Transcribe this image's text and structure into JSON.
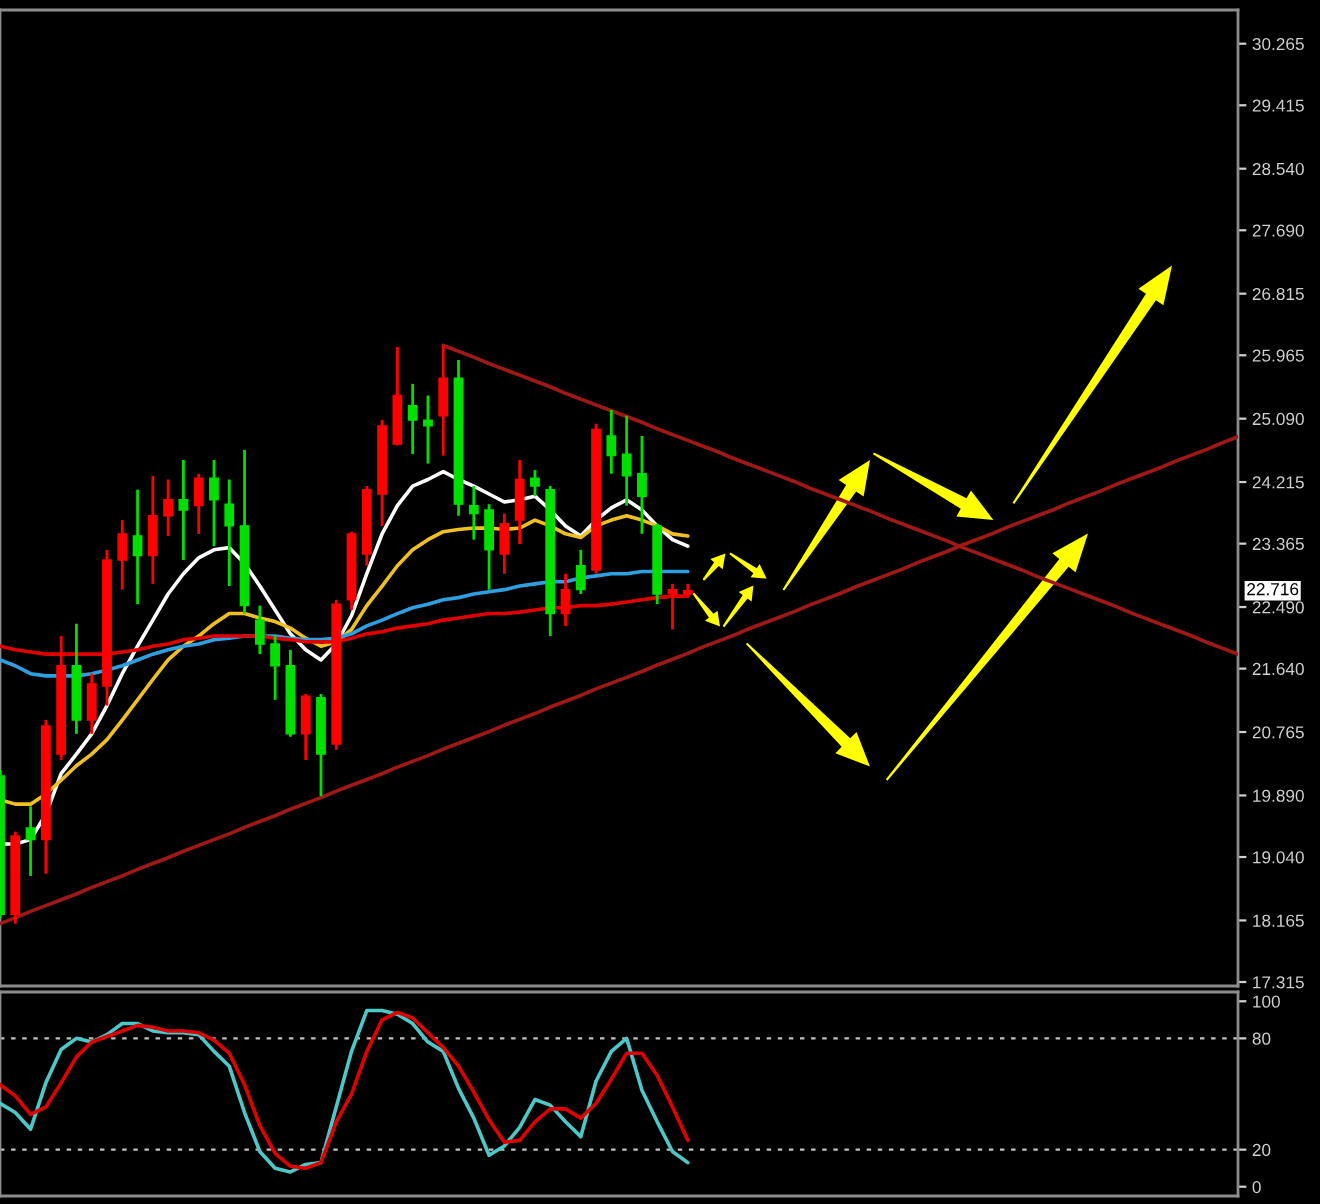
{
  "chart_data": [
    {
      "type": "candlestick",
      "categories": [
        null,
        null,
        null,
        null,
        null,
        null,
        null,
        null,
        null,
        null,
        null,
        null,
        null,
        null,
        null,
        null,
        null,
        null,
        null,
        null,
        null,
        null,
        null,
        null,
        null,
        null,
        null,
        null,
        null,
        null,
        null,
        null,
        null,
        null,
        null,
        null,
        null,
        null,
        null,
        null,
        null,
        null,
        null,
        null,
        null,
        null,
        null,
        null,
        null,
        null,
        null,
        null,
        null,
        null,
        null,
        null,
        null,
        null,
        null,
        null,
        null,
        null,
        null,
        null,
        null,
        null,
        null,
        null,
        null,
        null,
        null,
        null,
        null,
        null,
        null,
        null,
        null,
        null,
        null,
        null,
        null,
        null
      ],
      "ohlc": [
        [
          20.16,
          20.24,
          18.19,
          18.25
        ],
        [
          18.25,
          19.39,
          18.12,
          19.33
        ],
        [
          19.44,
          19.74,
          18.78,
          19.28
        ],
        [
          19.28,
          20.93,
          18.81,
          20.85
        ],
        [
          20.46,
          22.09,
          20.38,
          21.68
        ],
        [
          21.68,
          22.26,
          20.74,
          20.93
        ],
        [
          20.93,
          21.57,
          20.74,
          21.43
        ],
        [
          21.4,
          23.28,
          21.13,
          23.14
        ],
        [
          23.14,
          23.69,
          22.73,
          23.5
        ],
        [
          23.47,
          24.11,
          22.53,
          23.2
        ],
        [
          23.2,
          24.3,
          22.81,
          23.75
        ],
        [
          23.75,
          24.25,
          23.47,
          23.97
        ],
        [
          23.97,
          24.52,
          23.14,
          23.83
        ],
        [
          23.89,
          24.33,
          23.5,
          24.27
        ],
        [
          24.27,
          24.52,
          23.33,
          23.97
        ],
        [
          23.91,
          24.25,
          22.78,
          23.61
        ],
        [
          23.61,
          24.66,
          22.4,
          22.51
        ],
        [
          22.31,
          22.51,
          21.84,
          21.98
        ],
        [
          21.98,
          22.09,
          21.21,
          21.68
        ],
        [
          21.68,
          21.9,
          20.7,
          20.74
        ],
        [
          20.74,
          21.29,
          20.38,
          21.26
        ],
        [
          21.24,
          21.29,
          19.88,
          20.46
        ],
        [
          20.6,
          22.59,
          20.52,
          22.53
        ],
        [
          22.59,
          23.53,
          22.45,
          23.5
        ],
        [
          23.22,
          24.16,
          23.06,
          24.11
        ],
        [
          24.05,
          25.07,
          23.61,
          24.99
        ],
        [
          24.74,
          26.08,
          24.72,
          25.41
        ],
        [
          25.27,
          25.57,
          24.6,
          25.07
        ],
        [
          25.07,
          25.41,
          24.47,
          24.99
        ],
        [
          25.13,
          26.1,
          24.58,
          25.65
        ],
        [
          25.65,
          25.9,
          23.75,
          23.91
        ],
        [
          23.89,
          24.16,
          23.42,
          23.78
        ],
        [
          23.83,
          23.91,
          22.73,
          23.28
        ],
        [
          23.22,
          23.78,
          22.95,
          23.64
        ],
        [
          23.69,
          24.52,
          23.36,
          24.25
        ],
        [
          24.27,
          24.38,
          24.02,
          24.16
        ],
        [
          24.11,
          24.16,
          22.09,
          22.4
        ],
        [
          22.4,
          22.95,
          22.23,
          22.73
        ],
        [
          23.06,
          23.28,
          22.67,
          22.73
        ],
        [
          23.0,
          25.02,
          22.95,
          24.94
        ],
        [
          24.85,
          25.21,
          24.33,
          24.58
        ],
        [
          24.6,
          25.13,
          23.89,
          24.3
        ],
        [
          24.33,
          24.85,
          23.5,
          24.02
        ],
        [
          23.61,
          23.64,
          22.53,
          22.67
        ],
        [
          22.67,
          22.81,
          22.18,
          22.73
        ],
        [
          22.67,
          22.81,
          22.64,
          22.716
        ],
        null,
        null,
        null,
        null,
        null,
        null,
        null,
        null,
        null,
        null,
        null,
        null,
        null,
        null,
        null,
        null,
        null,
        null,
        null,
        null,
        null,
        null,
        null,
        null,
        null,
        null,
        null,
        null,
        null,
        null,
        null,
        null,
        null,
        null,
        null,
        null
      ],
      "colors": [
        "#00e000",
        "#ff0000",
        "#00e000",
        "#ff0000",
        "#ff0000",
        "#00e000",
        "#ff0000",
        "#ff0000",
        "#ff0000",
        "#00e000",
        "#ff0000",
        "#ff0000",
        "#00e000",
        "#ff0000",
        "#00e000",
        "#00e000",
        "#00e000",
        "#00e000",
        "#00e000",
        "#00e000",
        "#ff0000",
        "#00e000",
        "#ff0000",
        "#ff0000",
        "#ff0000",
        "#ff0000",
        "#ff0000",
        "#00e000",
        "#00e000",
        "#ff0000",
        "#00e000",
        "#00e000",
        "#00e000",
        "#ff0000",
        "#ff0000",
        "#00e000",
        "#00e000",
        "#ff0000",
        "#00e000",
        "#ff0000",
        "#00e000",
        "#00e000",
        "#00e000",
        "#00e000",
        "#ff0000",
        "#ff0000",
        null,
        null,
        null,
        null,
        null,
        null,
        null,
        null,
        null,
        null,
        null,
        null,
        null,
        null,
        null,
        null,
        null,
        null,
        null,
        null,
        null,
        null,
        null,
        null,
        null,
        null,
        null,
        null,
        null,
        null,
        null,
        null,
        null,
        null,
        null,
        null
      ],
      "series": [
        {
          "type": "line",
          "color": "#ffffff",
          "values": [
            19.22,
            19.22,
            19.28,
            19.63,
            20.19,
            20.46,
            20.74,
            21.13,
            21.57,
            21.95,
            22.31,
            22.67,
            22.95,
            23.17,
            23.28,
            23.31,
            23.09,
            22.78,
            22.45,
            22.12,
            21.9,
            21.76,
            21.98,
            22.37,
            22.95,
            23.5,
            23.89,
            24.16,
            24.25,
            24.36,
            24.25,
            24.16,
            24.05,
            23.94,
            23.97,
            24.02,
            23.83,
            23.61,
            23.47,
            23.69,
            23.86,
            23.97,
            23.83,
            23.61,
            23.42,
            23.33,
            null,
            null,
            null,
            null,
            null,
            null,
            null,
            null,
            null,
            null,
            null,
            null,
            null,
            null,
            null,
            null,
            null,
            null,
            null,
            null,
            null,
            null,
            null,
            null,
            null,
            null,
            null,
            null,
            null,
            null,
            null,
            null,
            null,
            null,
            null,
            null
          ]
        },
        {
          "type": "line",
          "color": "#f0c020",
          "values": [
            19.83,
            19.77,
            19.77,
            19.91,
            20.1,
            20.3,
            20.46,
            20.66,
            20.93,
            21.21,
            21.49,
            21.76,
            21.95,
            22.09,
            22.26,
            22.4,
            22.4,
            22.34,
            22.29,
            22.2,
            22.06,
            21.95,
            22.01,
            22.18,
            22.51,
            22.78,
            23.06,
            23.28,
            23.42,
            23.53,
            23.56,
            23.58,
            23.58,
            23.56,
            23.58,
            23.69,
            23.61,
            23.5,
            23.45,
            23.61,
            23.69,
            23.75,
            23.69,
            23.61,
            23.5,
            23.47,
            null,
            null,
            null,
            null,
            null,
            null,
            null,
            null,
            null,
            null,
            null,
            null,
            null,
            null,
            null,
            null,
            null,
            null,
            null,
            null,
            null,
            null,
            null,
            null,
            null,
            null,
            null,
            null,
            null,
            null,
            null,
            null,
            null,
            null,
            null,
            null
          ]
        },
        {
          "type": "line",
          "color": "#2e9fe0",
          "values": [
            21.76,
            21.68,
            21.57,
            21.54,
            21.54,
            21.54,
            21.57,
            21.62,
            21.68,
            21.76,
            21.84,
            21.9,
            21.95,
            21.98,
            22.04,
            22.06,
            22.09,
            22.09,
            22.09,
            22.06,
            22.04,
            22.04,
            22.06,
            22.12,
            22.23,
            22.31,
            22.4,
            22.48,
            22.53,
            22.59,
            22.62,
            22.67,
            22.7,
            22.73,
            22.78,
            22.81,
            22.84,
            22.84,
            22.89,
            22.92,
            22.95,
            22.95,
            22.98,
            22.98,
            22.98,
            22.98,
            null,
            null,
            null,
            null,
            null,
            null,
            null,
            null,
            null,
            null,
            null,
            null,
            null,
            null,
            null,
            null,
            null,
            null,
            null,
            null,
            null,
            null,
            null,
            null,
            null,
            null,
            null,
            null,
            null,
            null,
            null,
            null,
            null,
            null,
            null,
            null
          ]
        },
        {
          "type": "line",
          "color": "#e00000",
          "values": [
            21.95,
            21.9,
            21.87,
            21.84,
            21.84,
            21.84,
            21.84,
            21.84,
            21.87,
            21.9,
            21.95,
            21.98,
            22.04,
            22.06,
            22.09,
            22.09,
            22.09,
            22.09,
            22.06,
            22.04,
            22.01,
            22.01,
            22.01,
            22.06,
            22.12,
            22.15,
            22.2,
            22.23,
            22.26,
            22.31,
            22.34,
            22.37,
            22.4,
            22.4,
            22.42,
            22.45,
            22.48,
            22.48,
            22.51,
            22.51,
            22.53,
            22.56,
            22.59,
            22.62,
            22.64,
            22.64,
            null,
            null,
            null,
            null,
            null,
            null,
            null,
            null,
            null,
            null,
            null,
            null,
            null,
            null,
            null,
            null,
            null,
            null,
            null,
            null,
            null,
            null,
            null,
            null,
            null,
            null,
            null,
            null,
            null,
            null,
            null,
            null,
            null,
            null,
            null,
            null
          ]
        },
        {
          "type": "line",
          "color": "#a01818",
          "values": [
            18.12,
            18.2,
            18.29,
            18.37,
            18.45,
            18.53,
            18.62,
            18.7,
            18.78,
            18.87,
            18.95,
            19.03,
            19.12,
            19.2,
            19.28,
            19.36,
            19.45,
            19.53,
            19.61,
            19.7,
            19.78,
            19.86,
            19.95,
            20.03,
            20.11,
            20.19,
            20.28,
            20.36,
            20.44,
            20.53,
            20.61,
            20.69,
            20.77,
            20.86,
            20.94,
            21.02,
            21.11,
            21.19,
            21.27,
            21.36,
            21.44,
            21.52,
            21.6,
            21.69,
            21.77,
            21.85,
            21.94,
            22.02,
            22.1,
            22.19,
            22.27,
            22.35,
            22.43,
            22.52,
            22.6,
            22.68,
            22.77,
            22.85,
            22.93,
            23.01,
            23.1,
            23.18,
            23.26,
            23.35,
            23.43,
            23.51,
            23.6,
            23.68,
            23.76,
            23.84,
            23.93,
            24.01,
            24.09,
            24.18,
            24.26,
            24.34,
            24.42,
            24.51,
            24.59,
            24.67,
            24.76,
            24.84
          ]
        },
        {
          "type": "line",
          "color": "#a01818",
          "values": [
            null,
            null,
            null,
            null,
            null,
            null,
            null,
            null,
            null,
            null,
            null,
            null,
            null,
            null,
            null,
            null,
            null,
            null,
            null,
            null,
            null,
            null,
            null,
            null,
            null,
            null,
            null,
            null,
            null,
            26.1,
            26.02,
            25.94,
            25.85,
            25.77,
            25.69,
            25.61,
            25.53,
            25.44,
            25.36,
            25.28,
            25.2,
            25.12,
            25.04,
            24.95,
            24.87,
            24.79,
            24.71,
            24.63,
            24.54,
            24.46,
            24.38,
            24.3,
            24.22,
            24.13,
            24.05,
            23.97,
            23.89,
            23.81,
            23.72,
            23.64,
            23.56,
            23.48,
            23.4,
            23.31,
            23.23,
            23.15,
            23.07,
            22.99,
            22.9,
            22.82,
            22.74,
            22.66,
            22.58,
            22.5,
            22.41,
            22.33,
            22.25,
            22.17,
            22.09,
            22.0,
            21.92,
            21.84
          ]
        }
      ],
      "ylim": [
        17.26,
        30.73
      ],
      "yticks": [
        30.265,
        29.415,
        {
          "value": 28.54,
          "label": "28.540"
        },
        {
          "value": 27.69,
          "label": "27.690"
        },
        26.815,
        25.965,
        {
          "value": 25.09,
          "label": "25.090"
        },
        24.215,
        23.365,
        {
          "value": 22.49,
          "label": "22.490"
        },
        {
          "value": 21.64,
          "label": "21.640"
        },
        20.765,
        {
          "value": 19.89,
          "label": "19.890"
        },
        {
          "value": 19.04,
          "label": "19.040"
        },
        18.165,
        17.315
      ],
      "annotations": [
        "22.716"
      ]
    },
    {
      "type": "line",
      "categories": [
        null,
        null,
        null,
        null,
        null,
        null,
        null,
        null,
        null,
        null,
        null,
        null,
        null,
        null,
        null,
        null,
        null,
        null,
        null,
        null,
        null,
        null,
        null,
        null,
        null,
        null,
        null,
        null,
        null,
        null,
        null,
        null,
        null,
        null,
        null,
        null,
        null,
        null,
        null,
        null,
        null,
        null,
        null,
        null,
        null,
        null,
        null,
        null,
        null,
        null,
        null,
        null,
        null,
        null,
        null,
        null,
        null,
        null,
        null,
        null,
        null,
        null,
        null,
        null,
        null,
        null,
        null,
        null,
        null,
        null,
        null,
        null,
        null,
        null,
        null,
        null,
        null,
        null,
        null,
        null,
        null,
        null
      ],
      "series": [
        {
          "color": "#4cc8c8",
          "values": [
            45,
            40,
            31,
            56,
            74,
            80,
            78,
            82,
            88,
            88,
            84,
            83,
            83,
            82,
            73,
            65,
            40,
            19,
            10,
            8,
            12,
            13,
            43,
            73,
            95,
            95,
            93,
            88,
            78,
            73,
            53,
            37,
            17,
            22,
            32,
            47,
            44,
            35,
            27,
            57,
            73,
            80,
            52,
            35,
            19,
            13,
            null,
            null,
            null,
            null,
            null,
            null,
            null,
            null,
            null,
            null,
            null,
            null,
            null,
            null,
            null,
            null,
            null,
            null,
            null,
            null,
            null,
            null,
            null,
            null,
            null,
            null,
            null,
            null,
            null,
            null,
            null,
            null,
            null,
            null,
            null,
            null
          ]
        },
        {
          "color": "#e00000",
          "values": [
            55,
            49,
            39,
            43,
            56,
            70,
            78,
            81,
            84,
            87,
            86,
            84,
            84,
            83,
            79,
            72,
            55,
            33,
            18,
            11,
            10,
            13,
            35,
            50,
            73,
            90,
            94,
            91,
            83,
            75,
            65,
            51,
            36,
            24,
            25,
            35,
            42,
            42,
            37,
            45,
            58,
            72,
            72,
            60,
            43,
            25,
            null,
            null,
            null,
            null,
            null,
            null,
            null,
            null,
            null,
            null,
            null,
            null,
            null,
            null,
            null,
            null,
            null,
            null,
            null,
            null,
            null,
            null,
            null,
            null,
            null,
            null,
            null,
            null,
            null,
            null,
            null,
            null,
            null,
            null,
            null,
            null
          ]
        }
      ],
      "ylim": [
        -5,
        105
      ],
      "yticks": [
        0,
        20,
        80,
        100
      ],
      "ref_lines": [
        {
          "axis": "y",
          "value": 80,
          "color": "#c0c0c0",
          "line_style": "dotted"
        },
        {
          "axis": "y",
          "value": 20,
          "color": "#c0c0c0",
          "line_style": "dotted"
        }
      ]
    }
  ]
}
